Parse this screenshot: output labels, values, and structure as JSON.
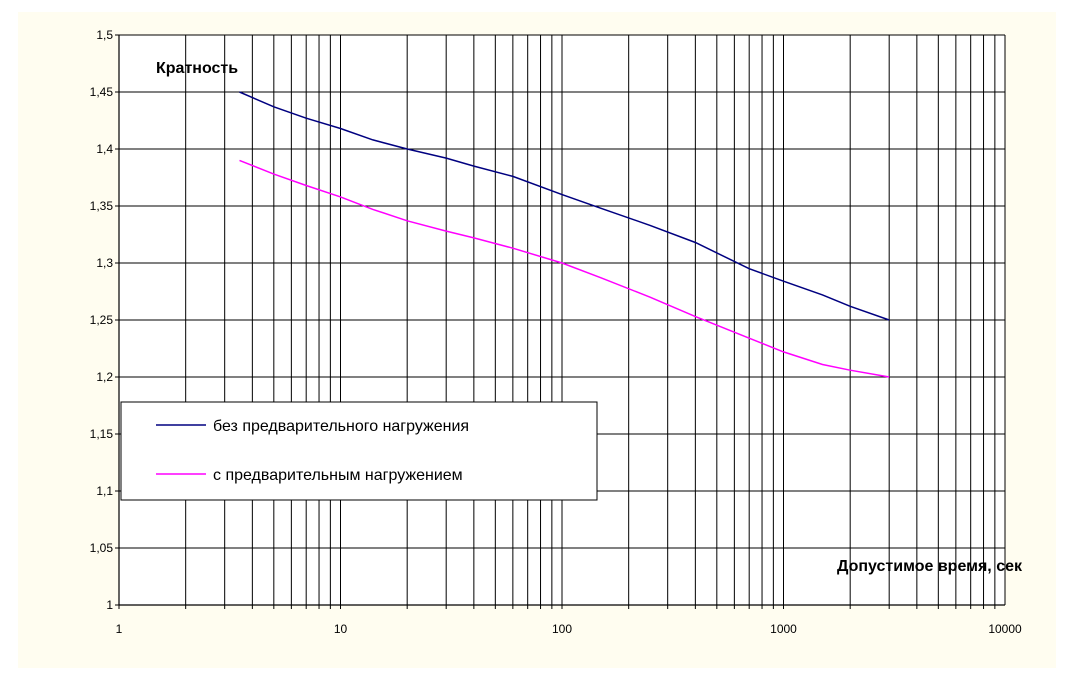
{
  "chart_data": {
    "type": "line",
    "xscale": "log",
    "xlim": [
      1,
      10000
    ],
    "ylim": [
      1,
      1.5
    ],
    "xticks": [
      1,
      10,
      100,
      1000,
      10000
    ],
    "xtick_labels": [
      "1",
      "10",
      "100",
      "1000",
      "10000"
    ],
    "yticks": [
      1,
      1.05,
      1.1,
      1.15,
      1.2,
      1.25,
      1.3,
      1.35,
      1.4,
      1.45,
      1.5
    ],
    "ytick_labels": [
      "1",
      "1,05",
      "1,1",
      "1,15",
      "1,2",
      "1,25",
      "1,3",
      "1,35",
      "1,4",
      "1,45",
      "1,5"
    ],
    "ylabel": "Кратность",
    "xlabel": "Допустимое время, сек",
    "grid": true,
    "legend_position": "lower-left",
    "series": [
      {
        "name": "без предварительного нагружения",
        "color": "#000080",
        "x": [
          3.5,
          5,
          7,
          10,
          14,
          20,
          30,
          40,
          60,
          100,
          150,
          250,
          400,
          700,
          1000,
          1500,
          2000,
          3000
        ],
        "y": [
          1.45,
          1.437,
          1.427,
          1.418,
          1.408,
          1.4,
          1.392,
          1.385,
          1.376,
          1.36,
          1.348,
          1.333,
          1.318,
          1.295,
          1.284,
          1.272,
          1.262,
          1.25
        ]
      },
      {
        "name": "с предварительным нагружением",
        "color": "#ff00ff",
        "x": [
          3.5,
          5,
          7,
          10,
          14,
          20,
          30,
          40,
          60,
          100,
          150,
          250,
          400,
          700,
          1000,
          1500,
          2000,
          3000
        ],
        "y": [
          1.39,
          1.378,
          1.368,
          1.358,
          1.347,
          1.337,
          1.328,
          1.322,
          1.313,
          1.3,
          1.287,
          1.27,
          1.253,
          1.234,
          1.222,
          1.211,
          1.206,
          1.2
        ]
      }
    ]
  }
}
